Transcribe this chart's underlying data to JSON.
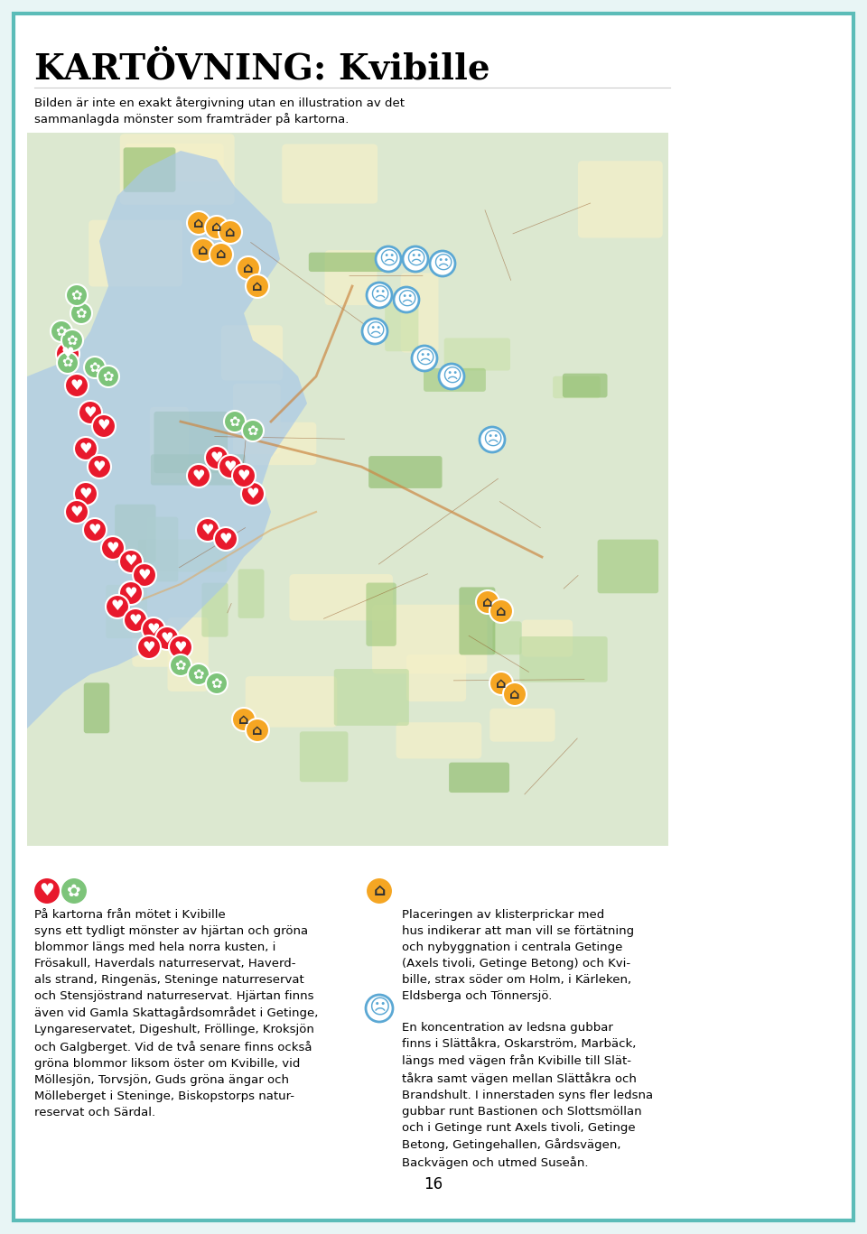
{
  "bg_color": "#e8f5f5",
  "page_bg": "#ffffff",
  "border_color": "#5bbcb8",
  "title": "KARTÖVNING: Kvibille",
  "subtitle": "Bilden är inte en exakt återgivning utan en illustration av det\nsammanlagda mönster som framträder på kartorna.",
  "left_icon1_color": "#e8192c",
  "left_icon2_color": "#7dc47a",
  "left_text": "På kartorna från mötet i Kvibille syns ett tydligt mönster av hjärtan och gröna blommor längs med hela norra kusten, i Frösakull, Haverdals naturreservat, Haverdals strand, Ringenäs, Steninge naturreservat och Stensjöstrand naturreservat. Hjärtan finns även vid Gamla Skattagårdsområdet i Getinge, Lyngareservatet, Digeshult, Fröllinge, Kroksjön och Galgberget. Vid de två senare finns också gröna blommor liksom öster om Kvibille, vid Möllesjön, Torvsjön, Guds gröna ängar och Mölleberget i Steninge, Biskopstorps naturreservat och Särdal.",
  "right_icon_color": "#f5a623",
  "right_text1": "Placeringen av klisterprickar med hus indikerar att man vill se förtätning och nybyggnation i centrala Getinge (Axels tivoli, Getinge Betong) och Kvibille, strax söder om Holm, i Kärleken, Eldsberga och Tönnersjö.",
  "right_icon2_color": "#5ba8d4",
  "right_text2": "En koncentration av ledsna gubbar finns i Slättåkra, Oskarström, Marbäck, längs med vägen från Kvibille till Slättåkra samt vägen mellan Slättåkra och Brandshult. I innerstaden syns fler ledsna gubbar runt Bastionen och Slottsmöllan och i Getinge runt Axels tivoli, Getinge Betong, Getingehallen, Gårdsvägen, Backvägen och utmed Suseån.",
  "page_number": "16"
}
